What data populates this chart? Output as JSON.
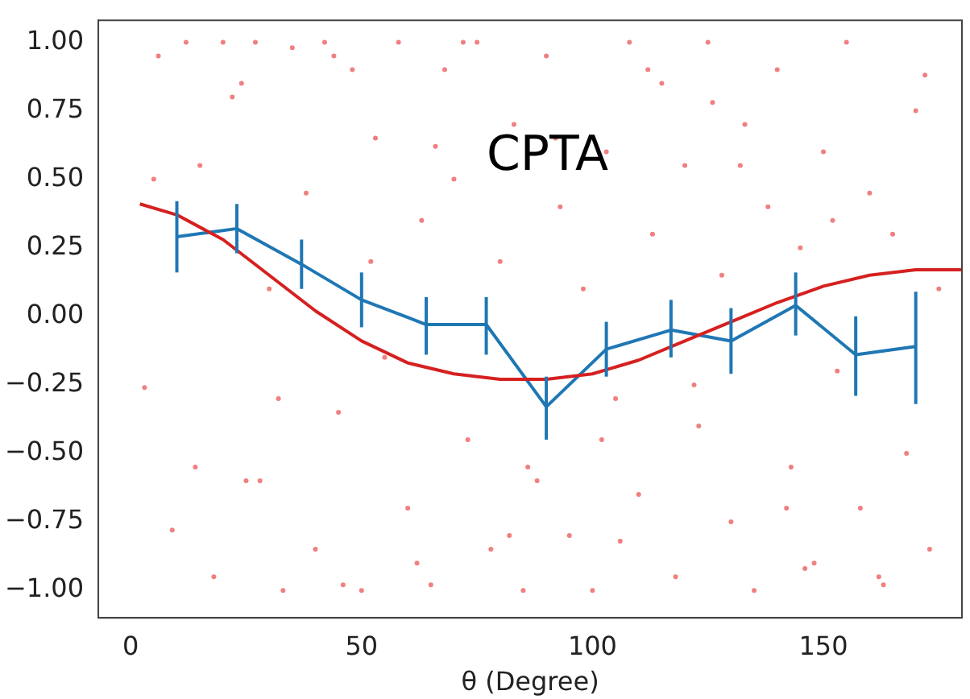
{
  "chart_data": {
    "type": "line",
    "title": "CPTA",
    "xlabel": "θ (Degree)",
    "xlim": [
      -7,
      180
    ],
    "xticks": [
      0,
      50,
      100,
      150
    ],
    "ylim": [
      -1.1,
      1.08
    ],
    "yticks": [
      {
        "value": -1,
        "label": "−1.00"
      },
      {
        "value": -0.75,
        "label": "−0.75"
      },
      {
        "value": -0.5,
        "label": "−0.50"
      },
      {
        "value": -0.25,
        "label": "−0.25"
      },
      {
        "value": 0,
        "label": "0.00"
      },
      {
        "value": 0.25,
        "label": "0.25"
      },
      {
        "value": 0.5,
        "label": "0.50"
      },
      {
        "value": 0.75,
        "label": "0.75"
      },
      {
        "value": 1,
        "label": "1.00"
      }
    ],
    "grid": false,
    "legend": false,
    "series": [
      {
        "type": "scatter",
        "color": "#f08080",
        "marker": "circle",
        "x": [
          3,
          6,
          9,
          12,
          15,
          18,
          20,
          22,
          25,
          27,
          30,
          33,
          35,
          38,
          40,
          42,
          45,
          48,
          50,
          53,
          55,
          58,
          60,
          63,
          65,
          68,
          70,
          73,
          75,
          78,
          80,
          83,
          85,
          88,
          90,
          93,
          95,
          98,
          100,
          103,
          105,
          108,
          110,
          113,
          115,
          118,
          120,
          123,
          125,
          128,
          130,
          133,
          135,
          138,
          140,
          143,
          145,
          148,
          150,
          153,
          155,
          158,
          160,
          163,
          165,
          168,
          170,
          173,
          175,
          5,
          14,
          24,
          32,
          44,
          52,
          62,
          72,
          82,
          92,
          102,
          112,
          122,
          132,
          142,
          152,
          162,
          172,
          28,
          46,
          66,
          86,
          106,
          126,
          146
        ],
        "values": [
          -0.26,
          0.95,
          -0.78,
          1.0,
          0.55,
          -0.95,
          1.0,
          0.8,
          -0.6,
          1.0,
          0.1,
          -1.0,
          0.98,
          0.45,
          -0.85,
          1.0,
          -0.35,
          0.9,
          -1.0,
          0.65,
          -0.15,
          1.0,
          -0.7,
          0.35,
          -0.98,
          0.9,
          0.5,
          -0.45,
          1.0,
          -0.85,
          0.2,
          0.7,
          -1.0,
          -0.6,
          0.95,
          0.4,
          -0.8,
          0.1,
          -1.0,
          0.6,
          -0.3,
          1.0,
          -0.65,
          0.3,
          0.85,
          -0.95,
          0.55,
          -0.4,
          1.0,
          0.15,
          -0.75,
          0.7,
          -1.0,
          0.4,
          0.9,
          -0.55,
          0.25,
          -0.9,
          0.6,
          -0.2,
          1.0,
          -0.7,
          0.45,
          -0.98,
          0.3,
          -0.5,
          0.75,
          -0.85,
          0.1,
          0.5,
          -0.55,
          0.85,
          -0.3,
          0.95,
          0.2,
          -0.9,
          1.0,
          -0.8,
          0.65,
          -0.45,
          0.9,
          -0.25,
          0.55,
          -0.7,
          0.35,
          -0.95,
          0.88,
          -0.6,
          -0.98,
          0.62,
          -0.55,
          -0.82,
          0.78,
          -0.92
        ]
      },
      {
        "type": "line",
        "color": "#d62020",
        "marker": "none",
        "x": [
          2,
          10,
          20,
          30,
          40,
          50,
          60,
          70,
          80,
          90,
          100,
          110,
          120,
          130,
          140,
          150,
          160,
          170,
          180
        ],
        "values": [
          0.41,
          0.37,
          0.28,
          0.15,
          0.02,
          -0.09,
          -0.17,
          -0.21,
          -0.23,
          -0.23,
          -0.21,
          -0.16,
          -0.09,
          -0.02,
          0.05,
          0.11,
          0.15,
          0.17,
          0.17
        ]
      },
      {
        "color": "#1f77b4",
        "marker": "none",
        "x": [
          10,
          23,
          37,
          50,
          64,
          77,
          90,
          103,
          117,
          130,
          144,
          157,
          170
        ],
        "values": [
          0.29,
          0.32,
          0.19,
          0.06,
          -0.03,
          -0.03,
          -0.33,
          -0.12,
          -0.05,
          -0.09,
          0.04,
          -0.14,
          -0.11
        ],
        "errors": [
          [
            0.16,
            0.42
          ],
          [
            0.23,
            0.41
          ],
          [
            0.1,
            0.28
          ],
          [
            -0.04,
            0.16
          ],
          [
            -0.14,
            0.07
          ],
          [
            -0.14,
            0.07
          ],
          [
            -0.45,
            -0.22
          ],
          [
            -0.22,
            -0.02
          ],
          [
            -0.15,
            0.06
          ],
          [
            -0.21,
            0.03
          ],
          [
            -0.07,
            0.16
          ],
          [
            -0.29,
            0.0
          ],
          [
            -0.32,
            0.09
          ]
        ]
      }
    ]
  }
}
